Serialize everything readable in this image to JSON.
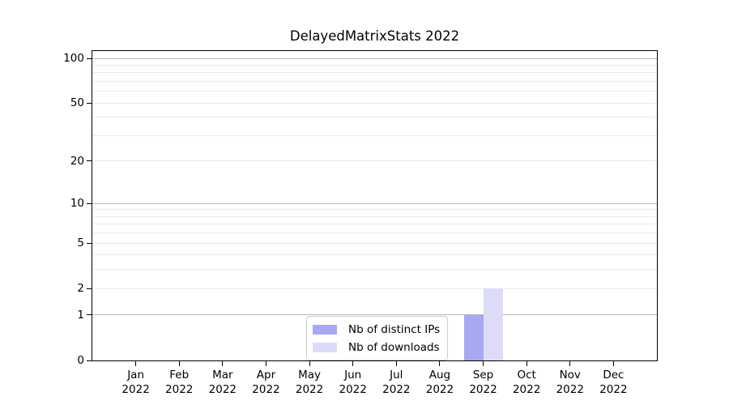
{
  "chart_data": {
    "type": "bar",
    "title": "DelayedMatrixStats 2022",
    "categories": [
      "Jan",
      "Feb",
      "Mar",
      "Apr",
      "May",
      "Jun",
      "Jul",
      "Aug",
      "Sep",
      "Oct",
      "Nov",
      "Dec"
    ],
    "category_year": "2022",
    "series": [
      {
        "name": "Nb of distinct IPs",
        "color": "#a8a8f2",
        "values": [
          0,
          0,
          0,
          0,
          0,
          0,
          0,
          0,
          1,
          0,
          0,
          0
        ]
      },
      {
        "name": "Nb of downloads",
        "color": "#dcdcf8",
        "values": [
          0,
          0,
          0,
          0,
          0,
          0,
          0,
          0,
          2,
          0,
          0,
          0
        ]
      }
    ],
    "yscale": "log1p",
    "ylim": [
      0,
      112
    ],
    "y_ticks": [
      0,
      1,
      2,
      5,
      10,
      20,
      50,
      100
    ],
    "grid": {
      "orientation": "horizontal",
      "major_values": [
        1,
        10,
        100
      ],
      "minor_values": [
        2,
        3,
        4,
        5,
        6,
        7,
        8,
        9,
        20,
        30,
        40,
        50,
        60,
        70,
        80,
        90
      ]
    },
    "legend": {
      "position": "inside-bottom-center",
      "entries": [
        "Nb of distinct IPs",
        "Nb of downloads"
      ]
    },
    "colors": {
      "major_grid": "#b9b9b9",
      "minor_grid": "#eaeaea",
      "spine": "#000000",
      "text": "#000000",
      "legend_border": "#cccccc",
      "background": "#ffffff"
    }
  }
}
